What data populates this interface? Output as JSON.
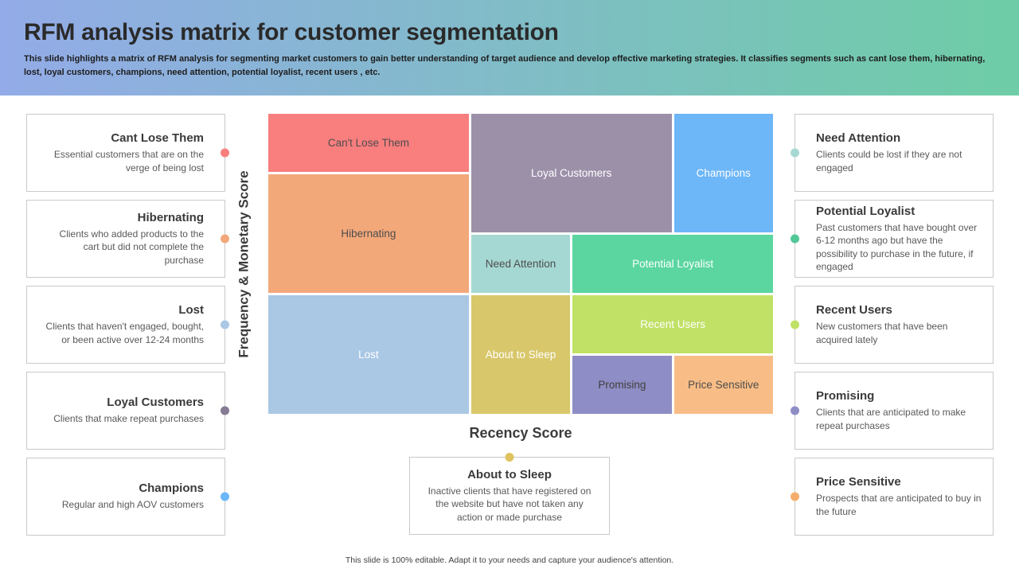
{
  "header": {
    "title": "RFM analysis matrix for customer segmentation",
    "subtitle": "This slide highlights a matrix of RFM  analysis for segmenting market customers to gain better understanding of target audience and develop effective marketing strategies. It classifies segments such as cant lose them, hibernating, lost, loyal customers, champions, need attention, potential loyalist, recent users , etc.",
    "gradient_start": "#93abe8",
    "gradient_end": "#6ecda6"
  },
  "axes": {
    "y_label": "Frequency & Monetary Score",
    "x_label": "Recency Score"
  },
  "matrix": {
    "cells": [
      {
        "label": "Can't Lose Them",
        "color": "#f97e7e",
        "text_color": "#4d4d4d"
      },
      {
        "label": "Loyal Customers",
        "color": "#9c90a9",
        "text_color": "#ffffff"
      },
      {
        "label": "Champions",
        "color": "#6db6f8",
        "text_color": "#ffffff"
      },
      {
        "label": "Hibernating",
        "color": "#f3a87a",
        "text_color": "#4d4d4d"
      },
      {
        "label": "Need Attention",
        "color": "#a6d8d3",
        "text_color": "#4d4d4d"
      },
      {
        "label": "Potential Loyalist",
        "color": "#5bd6a0",
        "text_color": "#ffffff"
      },
      {
        "label": "Lost",
        "color": "#aac7e4",
        "text_color": "#ffffff"
      },
      {
        "label": "About to Sleep",
        "color": "#d8c76b",
        "text_color": "#ffffff"
      },
      {
        "label": "Recent Users",
        "color": "#c1e166",
        "text_color": "#ffffff"
      },
      {
        "label": "Promising",
        "color": "#8f8dc5",
        "text_color": "#3f3f3f"
      },
      {
        "label": "Price Sensitive",
        "color": "#f8bd86",
        "text_color": "#4d4d4d"
      }
    ]
  },
  "left_cards": [
    {
      "title": "Cant Lose Them",
      "description": "Essential customers that are on the verge  of being lost",
      "dot_color": "#f97e7e"
    },
    {
      "title": "Hibernating",
      "description": "Clients who added products to the cart but did not complete the purchase",
      "dot_color": "#f3a87a"
    },
    {
      "title": "Lost",
      "description": "Clients that haven't engaged, bought, or been active over 12-24 months",
      "dot_color": "#aac7e4"
    },
    {
      "title": "Loyal Customers",
      "description": "Clients that make repeat purchases",
      "dot_color": "#857b92"
    },
    {
      "title": "Champions",
      "description": "Regular and high AOV customers",
      "dot_color": "#6db6f8"
    }
  ],
  "right_cards": [
    {
      "title": "Need Attention",
      "description": "Clients could be lost if they are not engaged",
      "dot_color": "#a6d8d3"
    },
    {
      "title": "Potential Loyalist",
      "description": "Past customers that have bought over 6-12 months ago but have the possibility to purchase in the future, if engaged",
      "dot_color": "#52c897"
    },
    {
      "title": "Recent Users",
      "description": "New customers that have been acquired lately",
      "dot_color": "#c1e166"
    },
    {
      "title": "Promising",
      "description": "Clients that are anticipated to make repeat purchases",
      "dot_color": "#8f8dc5"
    },
    {
      "title": "Price Sensitive",
      "description": "Prospects that are anticipated to buy in the future",
      "dot_color": "#f4ad6d"
    }
  ],
  "bottom_card": {
    "title": "About to Sleep",
    "description": "Inactive  clients that have  registered on the website  but have  not taken any action or made purchase",
    "dot_color": "#e0c35e"
  },
  "footer": {
    "text": "This slide is 100% editable.  Adapt it to your needs and capture your audience's attention."
  }
}
